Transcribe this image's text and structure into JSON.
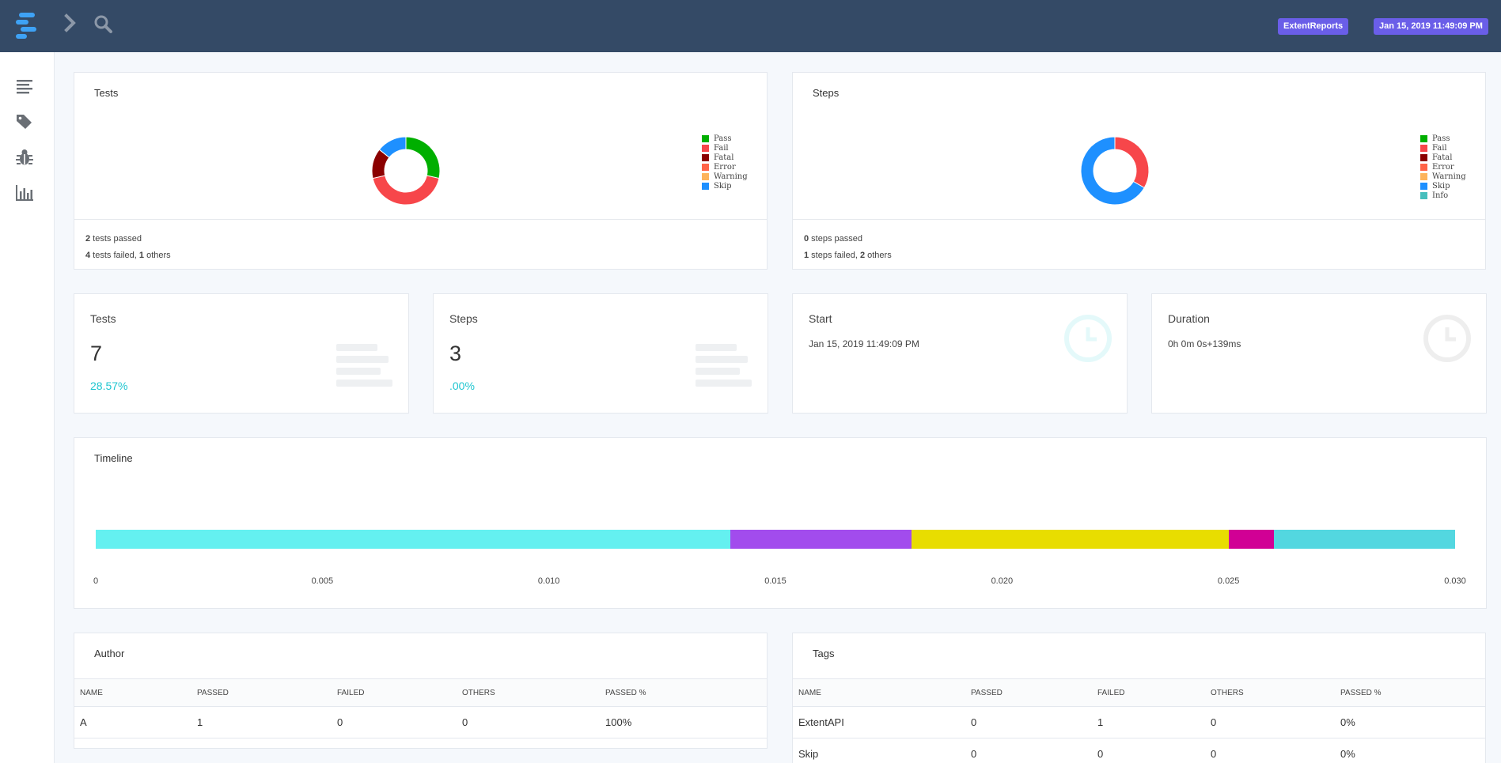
{
  "header": {
    "brand_badge": "ExtentReports",
    "timestamp_badge": "Jan 15, 2019 11:49:09 PM",
    "icons": [
      "logo-icon",
      "chevron-right-icon",
      "search-icon"
    ]
  },
  "sidebar": {
    "items": [
      {
        "name": "test-list",
        "icon": "list-icon"
      },
      {
        "name": "tags",
        "icon": "tag-icon"
      },
      {
        "name": "bugs",
        "icon": "bug-icon"
      },
      {
        "name": "dashboard",
        "icon": "bar-chart-icon"
      }
    ]
  },
  "tests_chart": {
    "title": "Tests",
    "legend": [
      {
        "label": "Pass",
        "color": "#00af00"
      },
      {
        "label": "Fail",
        "color": "#f7464a"
      },
      {
        "label": "Fatal",
        "color": "#8b0000"
      },
      {
        "label": "Error",
        "color": "#ff6347"
      },
      {
        "label": "Warning",
        "color": "#fdb45c"
      },
      {
        "label": "Skip",
        "color": "#1e90ff"
      }
    ],
    "footer": {
      "passed_count": "2",
      "passed_text": " tests passed",
      "failed_count": "4",
      "failed_text": " tests failed, ",
      "others_count": "1",
      "others_text": " others"
    }
  },
  "steps_chart": {
    "title": "Steps",
    "legend": [
      {
        "label": "Pass",
        "color": "#00af00"
      },
      {
        "label": "Fail",
        "color": "#f7464a"
      },
      {
        "label": "Fatal",
        "color": "#8b0000"
      },
      {
        "label": "Error",
        "color": "#ff6347"
      },
      {
        "label": "Warning",
        "color": "#fdb45c"
      },
      {
        "label": "Skip",
        "color": "#1e90ff"
      },
      {
        "label": "Info",
        "color": "#46bfbd"
      }
    ],
    "footer": {
      "passed_count": "0",
      "passed_text": " steps passed",
      "failed_count": "1",
      "failed_text": " steps failed, ",
      "others_count": "2",
      "others_text": " others"
    }
  },
  "stats": {
    "tests": {
      "label": "Tests",
      "value": "7",
      "pct": "28.57%"
    },
    "steps": {
      "label": "Steps",
      "value": "3",
      "pct": ".00%"
    },
    "start": {
      "label": "Start",
      "value": "Jan 15, 2019 11:49:09 PM"
    },
    "duration": {
      "label": "Duration",
      "value": "0h 0m 0s+139ms"
    }
  },
  "timeline": {
    "title": "Timeline",
    "ticks": [
      "0",
      "0.005",
      "0.010",
      "0.015",
      "0.020",
      "0.025",
      "0.030"
    ]
  },
  "author": {
    "title": "Author",
    "columns": [
      "NAME",
      "PASSED",
      "FAILED",
      "OTHERS",
      "PASSED %"
    ],
    "rows": [
      [
        "A",
        "1",
        "0",
        "0",
        "100%"
      ]
    ]
  },
  "tags": {
    "title": "Tags",
    "columns": [
      "NAME",
      "PASSED",
      "FAILED",
      "OTHERS",
      "PASSED %"
    ],
    "rows": [
      [
        "ExtentAPI",
        "0",
        "1",
        "0",
        "0%"
      ],
      [
        "Skip",
        "0",
        "0",
        "0",
        "0%"
      ]
    ]
  },
  "chart_data": [
    {
      "type": "pie",
      "title": "Tests",
      "donut": true,
      "slices": [
        {
          "label": "Pass",
          "value": 2,
          "color": "#00af00"
        },
        {
          "label": "Fail",
          "value": 3,
          "color": "#f7464a"
        },
        {
          "label": "Fatal",
          "value": 1,
          "color": "#8b0000"
        },
        {
          "label": "Error",
          "value": 0,
          "color": "#ff6347"
        },
        {
          "label": "Warning",
          "value": 0,
          "color": "#fdb45c"
        },
        {
          "label": "Skip",
          "value": 1,
          "color": "#1e90ff"
        }
      ]
    },
    {
      "type": "pie",
      "title": "Steps",
      "donut": true,
      "slices": [
        {
          "label": "Pass",
          "value": 0,
          "color": "#00af00"
        },
        {
          "label": "Fail",
          "value": 1,
          "color": "#f7464a"
        },
        {
          "label": "Fatal",
          "value": 0,
          "color": "#8b0000"
        },
        {
          "label": "Error",
          "value": 0,
          "color": "#ff6347"
        },
        {
          "label": "Warning",
          "value": 0,
          "color": "#fdb45c"
        },
        {
          "label": "Skip",
          "value": 2,
          "color": "#1e90ff"
        },
        {
          "label": "Info",
          "value": 0,
          "color": "#46bfbd"
        }
      ]
    },
    {
      "type": "bar",
      "title": "Timeline",
      "stacked": true,
      "horizontal": true,
      "xlim": [
        0,
        0.03
      ],
      "segments": [
        {
          "start": 0,
          "end": 0.014,
          "color": "#64f0f0"
        },
        {
          "start": 0.014,
          "end": 0.018,
          "color": "#a24ced"
        },
        {
          "start": 0.018,
          "end": 0.025,
          "color": "#e8dd00"
        },
        {
          "start": 0.025,
          "end": 0.026,
          "color": "#d10095"
        },
        {
          "start": 0.026,
          "end": 0.03,
          "color": "#53d7e0"
        }
      ]
    }
  ]
}
